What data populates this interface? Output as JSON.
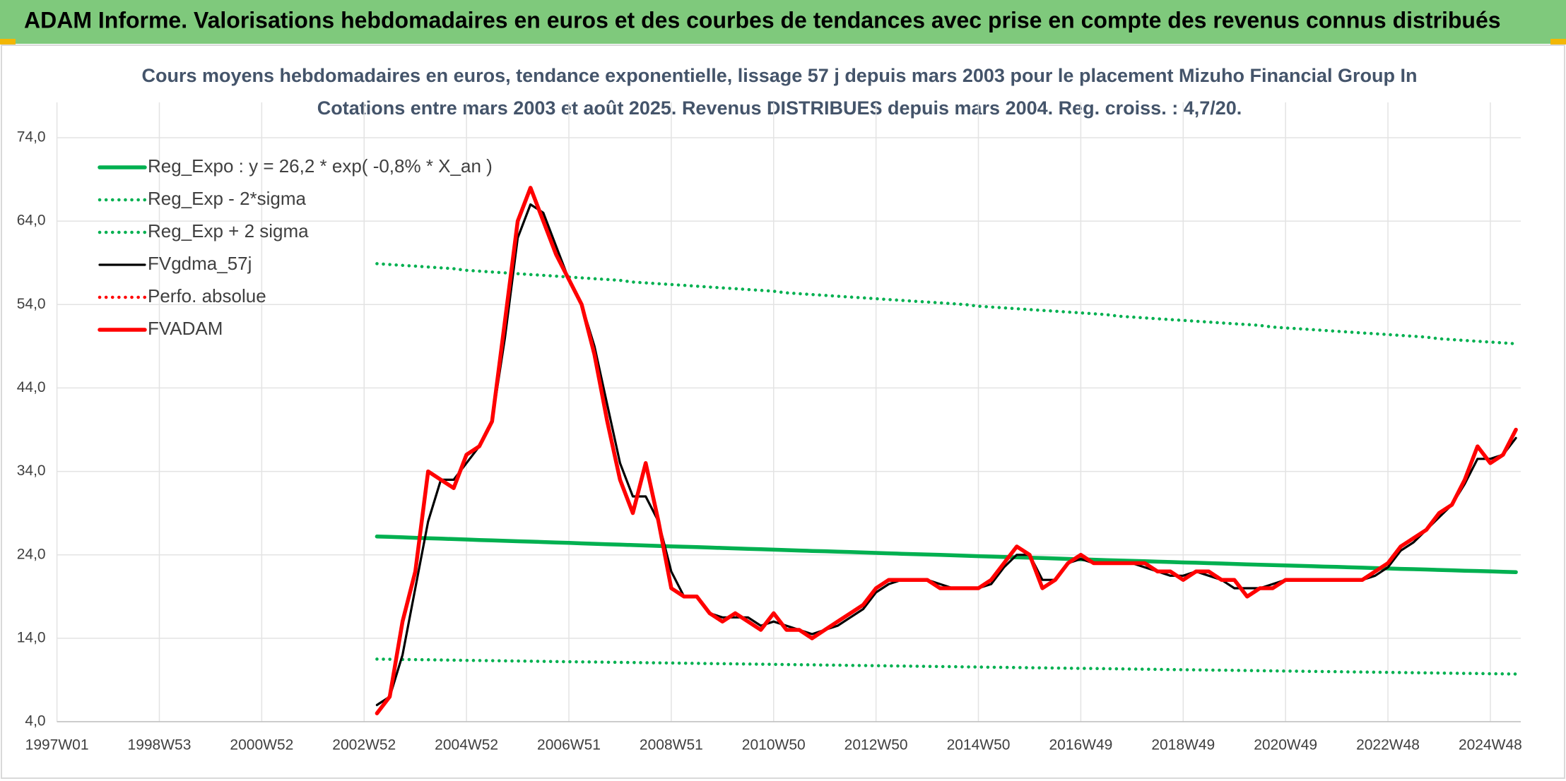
{
  "header": {
    "title": "ADAM Informe. Valorisations hebdomadaires en euros et des courbes de tendances avec prise en compte des revenus connus distribués"
  },
  "chart_data": {
    "type": "line",
    "title": "Cours moyens hebdomadaires en euros, tendance exponentielle, lissage 57 j depuis mars 2003 pour le placement Mizuho Financial Group In",
    "subtitle": "Cotations entre mars 2003 et août 2025. Revenus DISTRIBUES depuis mars 2004. Reg. croiss. : 4,7/20.",
    "categories": [
      "1997W01",
      null,
      null,
      null,
      null,
      null,
      null,
      null,
      "1998W53",
      null,
      null,
      null,
      null,
      null,
      null,
      null,
      "2000W52",
      null,
      null,
      null,
      null,
      null,
      null,
      null,
      "2002W52",
      null,
      null,
      null,
      null,
      null,
      null,
      null,
      "2004W52",
      null,
      null,
      null,
      null,
      null,
      null,
      null,
      "2006W51",
      null,
      null,
      null,
      null,
      null,
      null,
      null,
      "2008W51",
      null,
      null,
      null,
      null,
      null,
      null,
      null,
      "2010W50",
      null,
      null,
      null,
      null,
      null,
      null,
      null,
      "2012W50",
      null,
      null,
      null,
      null,
      null,
      null,
      null,
      "2014W50",
      null,
      null,
      null,
      null,
      null,
      null,
      null,
      "2016W49",
      null,
      null,
      null,
      null,
      null,
      null,
      null,
      "2018W49",
      null,
      null,
      null,
      null,
      null,
      null,
      null,
      "2020W49",
      null,
      null,
      null,
      null,
      null,
      null,
      null,
      "2022W48",
      null,
      null,
      null,
      null,
      null,
      null,
      null,
      "2024W48",
      null,
      null
    ],
    "ylim": [
      4,
      74
    ],
    "yticks": [
      {
        "value": 4,
        "label": "4,0"
      },
      {
        "value": 14,
        "label": "14,0"
      },
      {
        "value": 24,
        "label": "24,0"
      },
      {
        "value": 34,
        "label": "34,0"
      },
      {
        "value": 44,
        "label": "44,0"
      },
      {
        "value": 54,
        "label": "54,0"
      },
      {
        "value": 64,
        "label": "64,0"
      },
      {
        "value": 74,
        "label": "74,0"
      }
    ],
    "grid": true,
    "legend": "top-left",
    "series": [
      {
        "name": "Reg_Expo : y = 26,2 * exp( -0,8% *  X_an )",
        "color": "#00b050",
        "line_style": "solid",
        "values": [
          null,
          null,
          null,
          null,
          null,
          null,
          null,
          null,
          null,
          null,
          null,
          null,
          null,
          null,
          null,
          null,
          null,
          null,
          null,
          null,
          null,
          null,
          null,
          null,
          null,
          26.2,
          26.15,
          26.1,
          26.04,
          25.99,
          25.94,
          25.89,
          25.84,
          25.78,
          25.73,
          25.68,
          25.63,
          25.58,
          25.53,
          25.48,
          25.43,
          25.37,
          25.32,
          25.27,
          25.22,
          25.17,
          25.12,
          25.07,
          25.02,
          24.97,
          24.92,
          24.87,
          24.82,
          24.77,
          24.72,
          24.67,
          24.62,
          24.57,
          24.52,
          24.47,
          24.43,
          24.38,
          24.33,
          24.28,
          24.23,
          24.18,
          24.13,
          24.08,
          24.04,
          23.99,
          23.94,
          23.89,
          23.84,
          23.8,
          23.75,
          23.7,
          23.65,
          23.61,
          23.56,
          23.51,
          23.47,
          23.42,
          23.37,
          23.32,
          23.28,
          23.23,
          23.18,
          23.14,
          23.09,
          23.05,
          23.0,
          22.96,
          22.91,
          22.86,
          22.82,
          22.77,
          22.73,
          22.68,
          22.64,
          22.59,
          22.55,
          22.5,
          22.46,
          22.41,
          22.37,
          22.32,
          22.28,
          22.24,
          22.19,
          22.15,
          22.1,
          22.06,
          22.02,
          21.97,
          21.93
        ]
      },
      {
        "name": "Reg_Exp - 2*sigma",
        "color": "#00b050",
        "line_style": "dotted",
        "values": [
          null,
          null,
          null,
          null,
          null,
          null,
          null,
          null,
          null,
          null,
          null,
          null,
          null,
          null,
          null,
          null,
          null,
          null,
          null,
          null,
          null,
          null,
          null,
          null,
          null,
          11.5,
          11.48,
          11.46,
          11.44,
          11.42,
          11.4,
          11.37,
          11.35,
          11.33,
          11.31,
          11.29,
          11.27,
          11.25,
          11.23,
          11.21,
          11.19,
          11.17,
          11.15,
          11.13,
          11.11,
          11.09,
          11.07,
          11.05,
          11.03,
          11.01,
          10.99,
          10.97,
          10.95,
          10.93,
          10.91,
          10.89,
          10.87,
          10.85,
          10.83,
          10.81,
          10.79,
          10.77,
          10.75,
          10.73,
          10.71,
          10.69,
          10.67,
          10.65,
          10.63,
          10.61,
          10.59,
          10.57,
          10.55,
          10.53,
          10.51,
          10.49,
          10.47,
          10.45,
          10.43,
          10.41,
          10.39,
          10.37,
          10.35,
          10.33,
          10.31,
          10.29,
          10.27,
          10.25,
          10.23,
          10.21,
          10.19,
          10.17,
          10.15,
          10.13,
          10.11,
          10.09,
          10.07,
          10.05,
          10.03,
          10.01,
          9.99,
          9.97,
          9.95,
          9.93,
          9.91,
          9.89,
          9.87,
          9.85,
          9.83,
          9.81,
          9.79,
          9.77,
          9.75,
          9.73,
          9.71
        ]
      },
      {
        "name": "Reg_Exp + 2 sigma",
        "color": "#00b050",
        "line_style": "dotted",
        "values": [
          null,
          null,
          null,
          null,
          null,
          null,
          null,
          null,
          null,
          null,
          null,
          null,
          null,
          null,
          null,
          null,
          null,
          null,
          null,
          null,
          null,
          null,
          null,
          null,
          null,
          58.9,
          58.8,
          58.7,
          58.6,
          58.5,
          58.4,
          58.3,
          58.1,
          58.0,
          57.9,
          57.8,
          57.7,
          57.6,
          57.5,
          57.4,
          57.3,
          57.2,
          57.1,
          57.0,
          56.9,
          56.7,
          56.6,
          56.5,
          56.4,
          56.3,
          56.2,
          56.1,
          56.0,
          55.9,
          55.8,
          55.7,
          55.6,
          55.4,
          55.3,
          55.2,
          55.1,
          55.0,
          54.9,
          54.8,
          54.7,
          54.6,
          54.5,
          54.4,
          54.3,
          54.2,
          54.1,
          54.0,
          53.8,
          53.7,
          53.6,
          53.5,
          53.4,
          53.3,
          53.2,
          53.1,
          53.0,
          52.9,
          52.8,
          52.6,
          52.5,
          52.4,
          52.3,
          52.2,
          52.1,
          52.0,
          51.9,
          51.8,
          51.7,
          51.6,
          51.5,
          51.3,
          51.2,
          51.1,
          51.0,
          50.9,
          50.8,
          50.7,
          50.6,
          50.5,
          50.4,
          50.3,
          50.2,
          50.1,
          49.9,
          49.8,
          49.7,
          49.6,
          49.5,
          49.4,
          49.3
        ]
      },
      {
        "name": "FVgdma_57j",
        "color": "#000000",
        "line_style": "solid",
        "values": [
          null,
          null,
          null,
          null,
          null,
          null,
          null,
          null,
          null,
          null,
          null,
          null,
          null,
          null,
          null,
          null,
          null,
          null,
          null,
          null,
          null,
          null,
          null,
          null,
          null,
          6,
          7,
          12,
          20,
          28,
          33,
          33,
          35,
          37,
          40,
          50,
          62,
          66,
          65,
          61,
          57,
          54,
          49,
          42,
          35,
          31,
          31,
          28,
          22,
          19,
          19,
          17,
          16.5,
          16.5,
          16.5,
          15.5,
          16,
          15.5,
          15,
          14.5,
          15,
          15.5,
          16.5,
          17.5,
          19.5,
          20.5,
          21,
          21,
          21,
          20.5,
          20,
          20,
          20,
          20.5,
          22.5,
          24,
          24,
          21,
          21,
          23,
          23.5,
          23,
          23,
          23,
          23,
          22.5,
          22,
          21.5,
          21.5,
          22,
          21.5,
          21,
          20,
          20,
          20,
          20.5,
          21,
          21,
          21,
          21,
          21,
          21,
          21,
          21.5,
          22.5,
          24.5,
          25.5,
          27,
          28.5,
          30,
          32.5,
          35.5,
          35.5,
          36,
          38
        ]
      },
      {
        "name": "Perfo. absolue",
        "color": "#ff0000",
        "line_style": "dotted",
        "values": [
          null,
          null,
          null,
          null,
          null,
          null,
          null,
          null,
          null,
          null,
          null,
          null,
          null,
          null,
          null,
          null,
          null,
          null,
          null,
          null,
          null,
          null,
          null,
          null,
          null,
          null,
          null,
          null,
          null,
          null,
          null,
          null,
          null,
          null,
          null,
          null,
          null,
          null,
          null,
          null,
          null,
          null,
          null,
          null,
          null,
          null,
          null,
          null,
          null,
          null,
          null,
          null,
          null,
          null,
          null,
          null,
          null,
          null,
          null,
          null,
          null,
          null,
          null,
          null,
          null,
          null,
          null,
          null,
          null,
          null,
          null,
          null,
          null,
          null,
          null,
          null,
          null,
          null,
          null,
          null,
          null,
          null,
          null,
          null,
          null,
          null,
          null,
          null,
          null,
          null,
          null,
          null,
          null,
          null,
          null,
          null,
          null,
          null,
          null,
          null,
          null,
          null,
          null,
          null,
          null,
          null,
          null,
          null,
          null,
          null,
          null,
          null,
          null,
          null,
          null
        ]
      },
      {
        "name": "FVADAM",
        "color": "#ff0000",
        "line_style": "solid",
        "values": [
          null,
          null,
          null,
          null,
          null,
          null,
          null,
          null,
          null,
          null,
          null,
          null,
          null,
          null,
          null,
          null,
          null,
          null,
          null,
          null,
          null,
          null,
          null,
          null,
          null,
          5,
          7,
          16,
          22,
          34,
          33,
          32,
          36,
          37,
          40,
          52,
          64,
          68,
          64,
          60,
          57,
          54,
          48,
          40,
          33,
          29,
          35,
          28,
          20,
          19,
          19,
          17,
          16,
          17,
          16,
          15,
          17,
          15,
          15,
          14,
          15,
          16,
          17,
          18,
          20,
          21,
          21,
          21,
          21,
          20,
          20,
          20,
          20,
          21,
          23,
          25,
          24,
          20,
          21,
          23,
          24,
          23,
          23,
          23,
          23,
          23,
          22,
          22,
          21,
          22,
          22,
          21,
          21,
          19,
          20,
          20,
          21,
          21,
          21,
          21,
          21,
          21,
          21,
          22,
          23,
          25,
          26,
          27,
          29,
          30,
          33,
          37,
          35,
          36,
          39
        ]
      }
    ]
  }
}
